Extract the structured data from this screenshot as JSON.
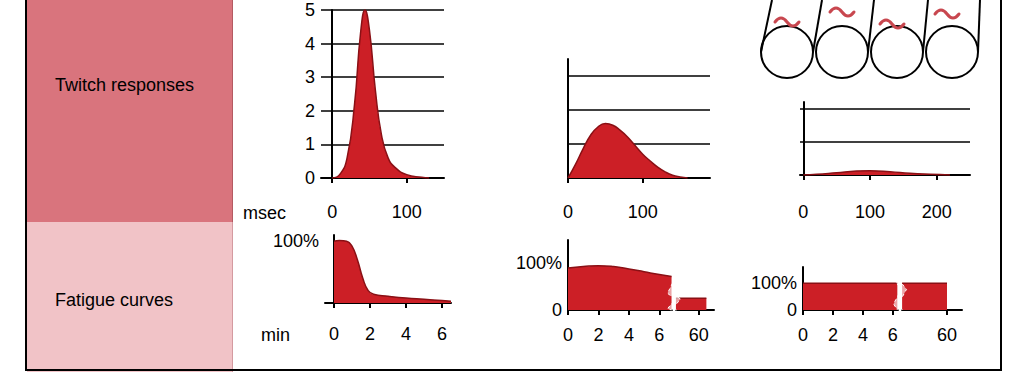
{
  "row_labels": [
    "Twitch responses",
    "Fatigue curves"
  ],
  "chart_data": [
    {
      "type": "area",
      "xlabel": "msec",
      "color": "#cc1f26",
      "x": [
        0,
        10,
        20,
        30,
        38,
        44,
        50,
        58,
        66,
        75,
        85,
        100,
        120,
        130
      ],
      "values": [
        0,
        0.1,
        0.6,
        2.2,
        4.3,
        5,
        4.4,
        2.6,
        1.3,
        0.6,
        0.3,
        0.1,
        0.02,
        0
      ],
      "xlim": [
        -15,
        150
      ],
      "xticks": [
        0,
        100
      ],
      "ylim": [
        0,
        5
      ],
      "yticks": [
        0,
        1,
        2,
        3,
        4,
        5
      ],
      "grid": true,
      "tick_labels": true
    },
    {
      "type": "area",
      "color": "#cc1f26",
      "x": [
        0,
        10,
        20,
        30,
        40,
        50,
        60,
        70,
        80,
        90,
        100,
        110,
        120,
        130,
        140,
        150,
        160
      ],
      "values": [
        0,
        0.4,
        0.85,
        1.25,
        1.5,
        1.6,
        1.55,
        1.4,
        1.2,
        0.95,
        0.7,
        0.5,
        0.32,
        0.18,
        0.08,
        0.03,
        0
      ],
      "xlim": [
        0,
        190
      ],
      "xticks": [
        0,
        100
      ],
      "ylim": [
        0,
        3.5
      ],
      "yticks": [
        0,
        1,
        2,
        3
      ],
      "grid": true,
      "tick_labels": "x"
    },
    {
      "type": "area",
      "color": "#cc1f26",
      "x": [
        0,
        20,
        50,
        80,
        100,
        130,
        160,
        190,
        220
      ],
      "values": [
        0,
        0.02,
        0.07,
        0.12,
        0.13,
        0.1,
        0.05,
        0.02,
        0
      ],
      "xlim": [
        -5,
        250
      ],
      "xticks": [
        0,
        100,
        200
      ],
      "ylim": [
        0,
        2.2
      ],
      "yticks": [
        0,
        1,
        2
      ],
      "grid": true,
      "tick_labels": "x"
    },
    {
      "type": "area",
      "xlabel": "min",
      "color": "#cc1f26",
      "x": [
        0,
        0.3,
        0.7,
        1,
        1.3,
        1.6,
        1.9,
        2.2,
        3,
        4,
        5,
        6,
        6.5
      ],
      "values": [
        100,
        101,
        100,
        92,
        70,
        40,
        20,
        14,
        11,
        8,
        6,
        4,
        3
      ],
      "xlim": [
        -0.5,
        6.5
      ],
      "xticks": [
        0,
        2,
        4,
        6
      ],
      "ylim": [
        0,
        110
      ],
      "yticks": [
        {
          "value": 100,
          "label": "100%"
        }
      ],
      "grid": false,
      "tick_labels": true
    },
    {
      "type": "area",
      "color": "#cc1f26",
      "x": [
        0,
        1,
        2,
        3,
        4,
        5,
        6,
        6.8,
        7,
        58.5,
        60.5
      ],
      "values": [
        90,
        93,
        95,
        93,
        88,
        82,
        76,
        72,
        null,
        25,
        25
      ],
      "xlim": [
        0,
        61
      ],
      "xticks": [
        0,
        2,
        4,
        6,
        60
      ],
      "ylim": [
        0,
        150
      ],
      "yticks": [
        0,
        {
          "value": 100,
          "label": "100%"
        }
      ],
      "grid": false,
      "tick_labels": true
    },
    {
      "type": "area",
      "color": "#cc1f26",
      "x": [
        0,
        2,
        4,
        6.3,
        6.5,
        57,
        60
      ],
      "values": [
        100,
        100,
        100,
        100,
        null,
        100,
        100
      ],
      "xlim": [
        0,
        61
      ],
      "xticks": [
        0,
        2,
        4,
        6,
        60
      ],
      "ylim": [
        0,
        160
      ],
      "yticks": [
        0,
        {
          "value": 100,
          "label": "100%"
        }
      ],
      "grid": false,
      "tick_labels": true
    }
  ]
}
